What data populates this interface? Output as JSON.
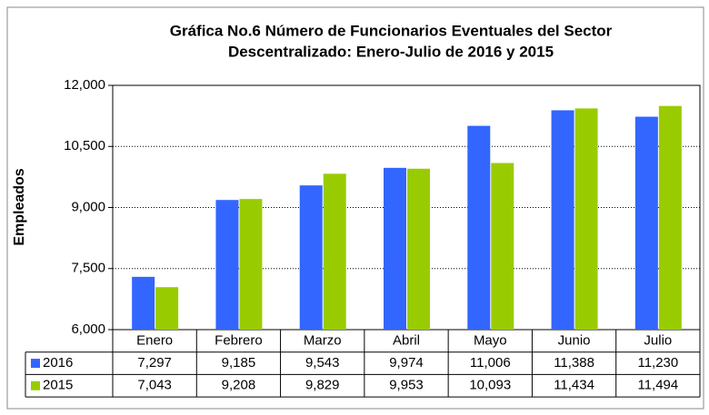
{
  "chart_data": {
    "type": "bar",
    "title": [
      "Gráfica No.6 Número de Funcionarios Eventuales del Sector",
      "Descentralizado: Enero-Julio de 2016 y 2015"
    ],
    "y_label": "Empleados",
    "categories": [
      "Enero",
      "Febrero",
      "Marzo",
      "Abril",
      "Mayo",
      "Junio",
      "Julio"
    ],
    "series": [
      {
        "name": "2016",
        "color": "#3366ff",
        "values": [
          7297,
          9185,
          9543,
          9974,
          11006,
          11388,
          11230
        ],
        "value_labels": [
          "7,297",
          "9,185",
          "9,543",
          "9,974",
          "11,006",
          "11,388",
          "11,230"
        ]
      },
      {
        "name": "2015",
        "color": "#99cc00",
        "values": [
          7043,
          9208,
          9829,
          9953,
          10093,
          11434,
          11494
        ],
        "value_labels": [
          "7,043",
          "9,208",
          "9,829",
          "9,953",
          "10,093",
          "11,434",
          "11,494"
        ]
      }
    ],
    "ylim": [
      6000,
      12000
    ],
    "yticks": [
      {
        "value": 6000,
        "label": "6,000"
      },
      {
        "value": 7500,
        "label": "7,500"
      },
      {
        "value": 9000,
        "label": "9,000"
      },
      {
        "value": 10500,
        "label": "10,500"
      },
      {
        "value": 12000,
        "label": "12,000"
      }
    ],
    "grid": true,
    "data_table": true
  }
}
